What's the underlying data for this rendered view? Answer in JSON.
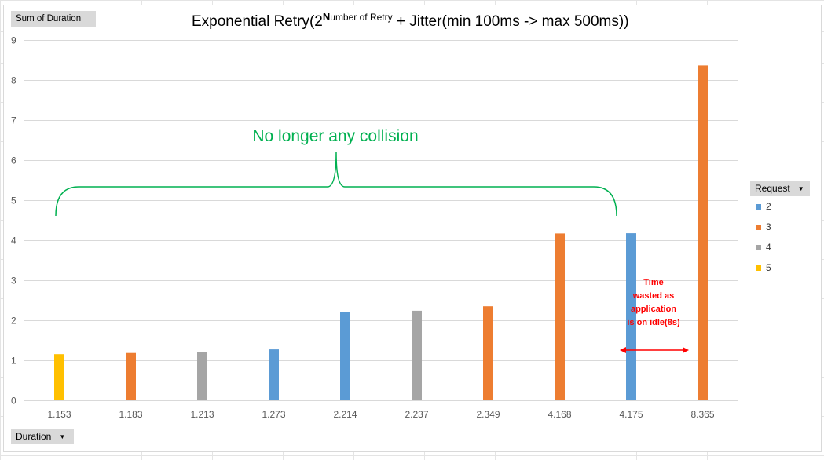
{
  "pivot": {
    "value_field": "Sum of Duration",
    "axis_field": "Duration",
    "legend_field": "Request",
    "dropdown_icon": "dropdown-arrow-icon"
  },
  "title": {
    "base": "Exponential Retry(2",
    "superscript_initial": "N",
    "superscript_rest": "umber of Retry",
    "rest": " + Jitter(min 100ms -> max 500ms))"
  },
  "annotations": {
    "collision_text": "No longer any collision",
    "collision_color": "#00b050",
    "idle_lines": [
      "Time",
      "wasted as",
      "application",
      "is on idle(8s)"
    ],
    "idle_color": "#ff0000"
  },
  "colors": {
    "2": "#5b9bd5",
    "3": "#ed7d31",
    "4": "#a5a5a5",
    "5": "#ffc000"
  },
  "chart_data": {
    "type": "bar",
    "title": "Exponential Retry(2^Number of Retry + Jitter(min 100ms -> max 500ms))",
    "xlabel": "Duration",
    "ylabel": "Sum of Duration",
    "ylim": [
      0,
      9
    ],
    "yticks": [
      0,
      1,
      2,
      3,
      4,
      5,
      6,
      7,
      8,
      9
    ],
    "grid": true,
    "legend_title": "Request",
    "legend_position": "right",
    "series_order": [
      "2",
      "3",
      "4",
      "5"
    ],
    "categories": [
      "1.153",
      "1.183",
      "1.213",
      "1.273",
      "2.214",
      "2.237",
      "2.349",
      "4.168",
      "4.175",
      "8.365"
    ],
    "series": [
      {
        "name": "2",
        "values": [
          null,
          null,
          null,
          1.273,
          2.214,
          null,
          null,
          null,
          4.175,
          null
        ]
      },
      {
        "name": "3",
        "values": [
          null,
          1.183,
          null,
          null,
          null,
          null,
          2.349,
          4.168,
          null,
          8.365
        ]
      },
      {
        "name": "4",
        "values": [
          null,
          null,
          1.213,
          null,
          null,
          2.237,
          null,
          null,
          null,
          null
        ]
      },
      {
        "name": "5",
        "values": [
          1.153,
          null,
          null,
          null,
          null,
          null,
          null,
          null,
          null,
          null
        ]
      }
    ]
  }
}
